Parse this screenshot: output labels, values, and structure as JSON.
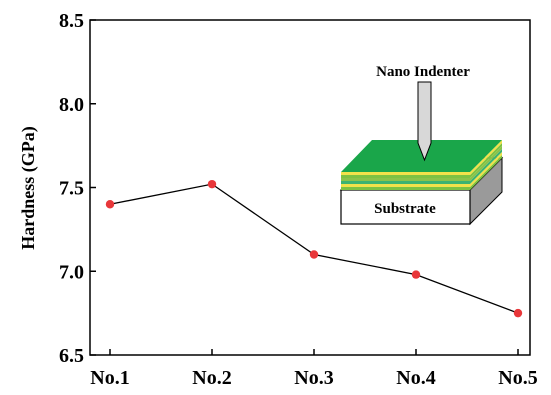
{
  "chart_data": {
    "type": "line",
    "title": "",
    "xlabel": "",
    "ylabel": "Hardness (GPa)",
    "categories": [
      "No.1",
      "No.2",
      "No.3",
      "No.4",
      "No.5"
    ],
    "series": [
      {
        "values": [
          7.4,
          7.52,
          7.1,
          6.98,
          6.75
        ]
      }
    ],
    "ylim": [
      6.5,
      8.5
    ],
    "yticks": [
      "6.5",
      "7.0",
      "7.5",
      "8.0",
      "8.5"
    ],
    "grid": false,
    "colors": {
      "line": "#000000",
      "marker": "#e8373a",
      "film_top": "#1aa64a",
      "film_layers": [
        "#7dc242",
        "#f2e24a",
        "#3cb371",
        "#8bc34a"
      ],
      "substrate_edge": "#000000"
    },
    "inset": {
      "indenter_label": "Nano Indenter",
      "substrate_label": "Substrate"
    }
  }
}
